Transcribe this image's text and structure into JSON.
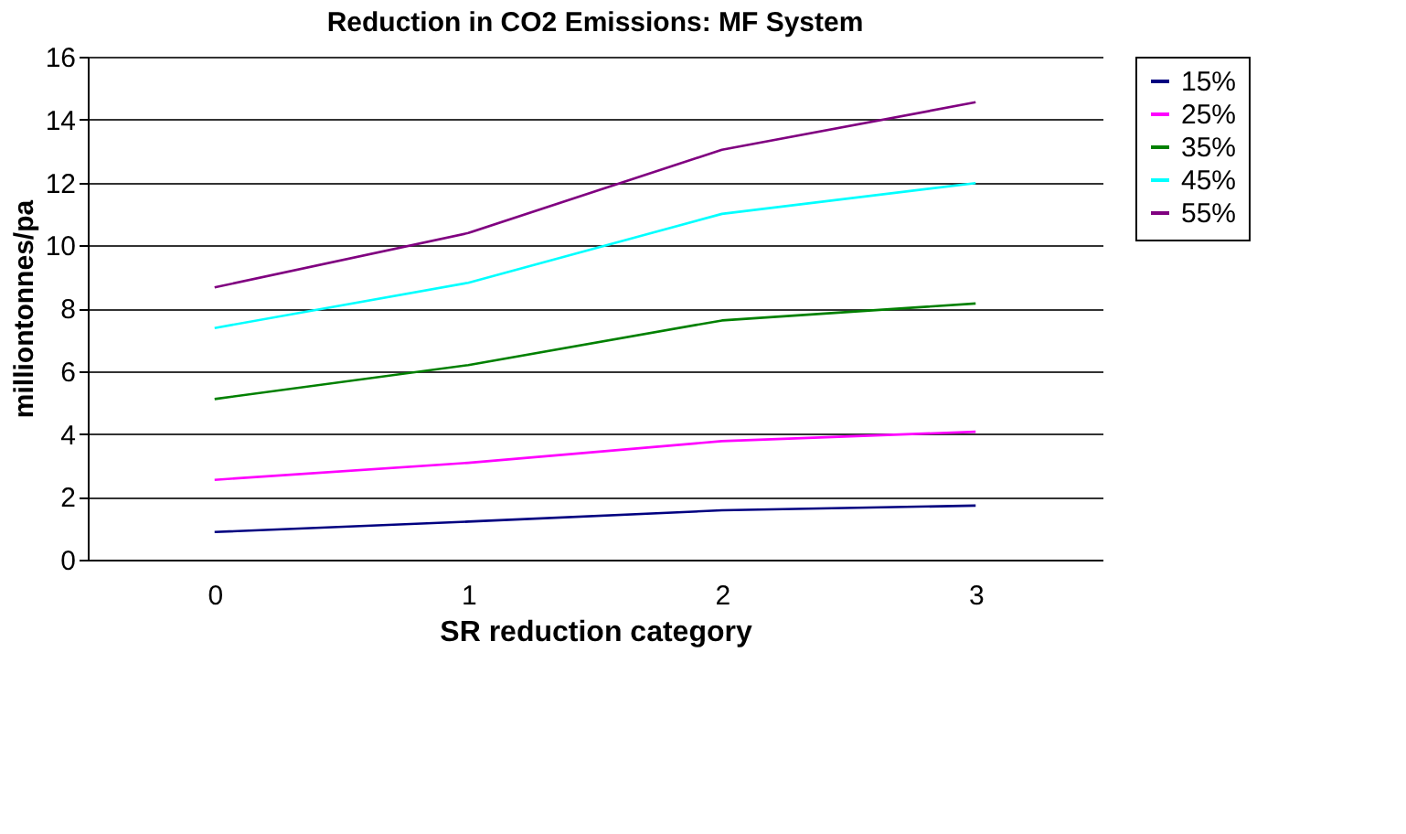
{
  "chart_data": {
    "type": "line",
    "title": "Reduction in CO2 Emissions: MF System",
    "xlabel": "SR reduction category",
    "ylabel": "milliontonnes/pa",
    "categories": [
      "0",
      "1",
      "2",
      "3"
    ],
    "series": [
      {
        "name": "15%",
        "color": "#000080",
        "values": [
          0.88,
          1.21,
          1.57,
          1.72
        ]
      },
      {
        "name": "25%",
        "color": "#ff00ff",
        "values": [
          2.54,
          3.08,
          3.77,
          4.07
        ]
      },
      {
        "name": "35%",
        "color": "#008000",
        "values": [
          5.11,
          6.19,
          7.61,
          8.15
        ]
      },
      {
        "name": "45%",
        "color": "#00ffff",
        "values": [
          7.37,
          8.81,
          11.0,
          11.98
        ]
      },
      {
        "name": "55%",
        "color": "#800080",
        "values": [
          8.66,
          10.39,
          13.04,
          14.55
        ]
      }
    ],
    "ylim": [
      0,
      16
    ],
    "yticks": [
      0,
      2,
      4,
      6,
      8,
      10,
      12,
      14,
      16
    ],
    "grid": "y",
    "legend": "right",
    "marker": "none",
    "line_style": "solid"
  }
}
